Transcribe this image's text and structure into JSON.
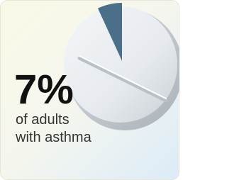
{
  "chart_data": {
    "type": "pie",
    "values": [
      7
    ],
    "value_labels": [
      "7%"
    ],
    "color": "#4b6f88",
    "caption_lines": [
      "of adults",
      "with asthma"
    ]
  }
}
